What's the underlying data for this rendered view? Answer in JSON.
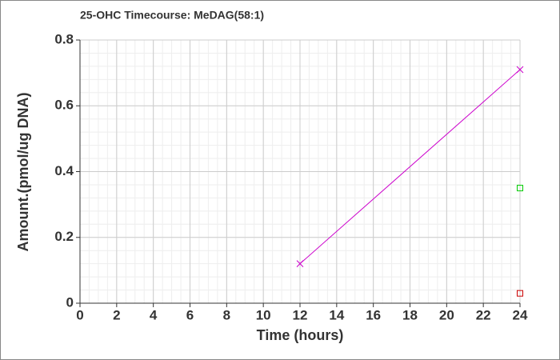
{
  "chart_data": {
    "type": "line",
    "title": "25-OHC Timecourse: MeDAG(58:1)",
    "x_label": "Time (hours)",
    "y_label": "Amount.(pmol/ug DNA)",
    "xlim": [
      0,
      24
    ],
    "xticks": [
      0,
      2,
      4,
      6,
      8,
      10,
      12,
      14,
      16,
      18,
      20,
      22,
      24
    ],
    "ylim": [
      0,
      0.8
    ],
    "yticks": [
      0,
      0.2,
      0.4,
      0.6,
      0.8
    ],
    "grid": true,
    "minor_grid": true,
    "series": [
      {
        "color": "#cc00cc",
        "marker": "x",
        "line": true,
        "x": [
          12,
          24
        ],
        "values": [
          0.12,
          0.71
        ]
      },
      {
        "color": "#00cc00",
        "marker": "square",
        "line": false,
        "x": [
          24
        ],
        "values": [
          0.35
        ]
      },
      {
        "color": "#cc0000",
        "marker": "square",
        "line": false,
        "x": [
          24
        ],
        "values": [
          0.03
        ]
      }
    ]
  }
}
